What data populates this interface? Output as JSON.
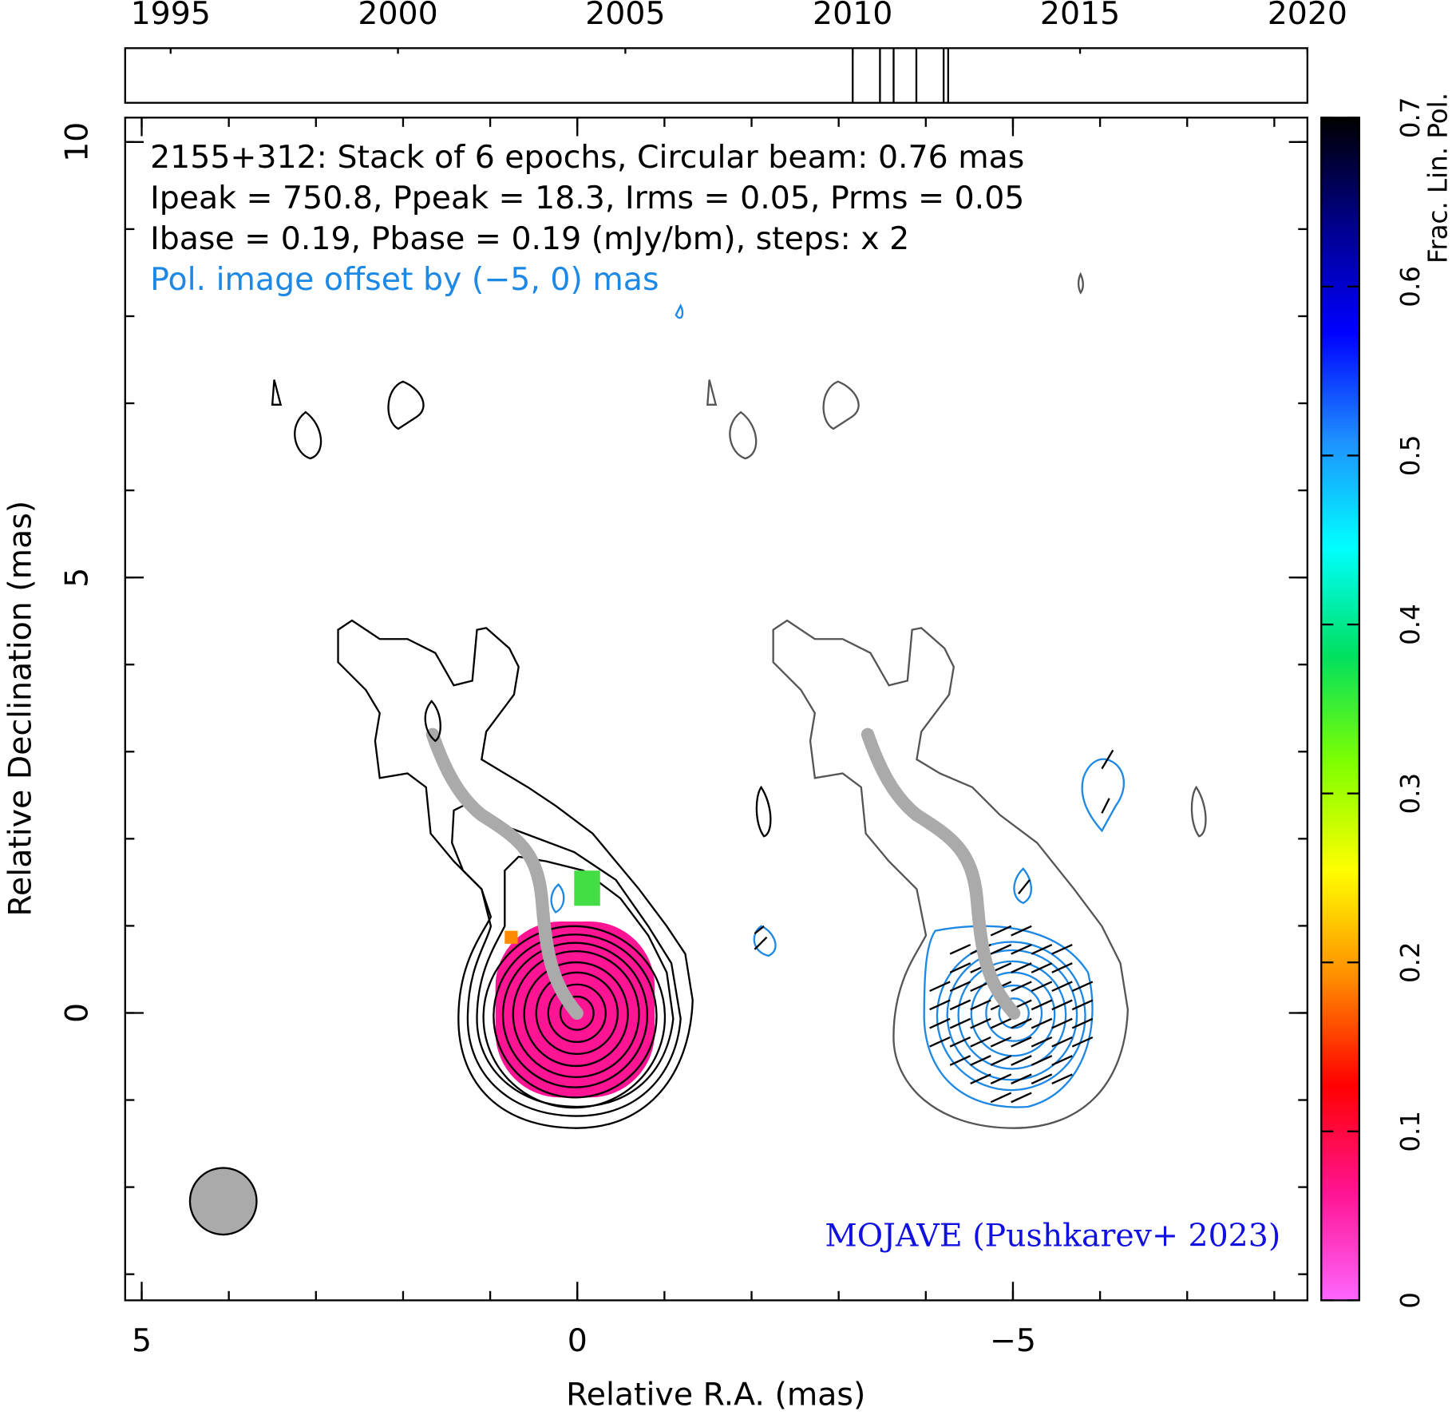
{
  "chart_data": {
    "type": "image",
    "title": "2155+312: Stack of 6 epochs, Circular beam: 0.76 mas",
    "annotations": [
      {
        "text": "Ipeak = 750.8, Ppeak = 18.3, Irms = 0.05, Prms = 0.05",
        "color": "#000000"
      },
      {
        "text": "Ibase = 0.19, Pbase = 0.19 (mJy/bm), steps: x 2",
        "color": "#000000"
      },
      {
        "text": "Pol. image offset by (−5, 0) mas",
        "color": "#1e88e5"
      }
    ],
    "credit": {
      "text": "MOJAVE (Pushkarev+ 2023)",
      "color": "#1010e0"
    },
    "x_label": "Relative R.A. (mas)",
    "y_label": "Relative Declination (mas)",
    "xlim": [
      5.19,
      -8.38
    ],
    "ylim": [
      -3.3,
      10.28
    ],
    "xticks": [
      5,
      0,
      {
        "value": -5,
        "label": "−5"
      }
    ],
    "yticks": [
      0,
      5,
      10
    ],
    "xminorticks": [
      5,
      4,
      3,
      2,
      1,
      0,
      -1,
      -2,
      -3,
      -4,
      -5,
      -6,
      -7,
      -8
    ],
    "yminorticks": [
      -3,
      -2,
      -1,
      0,
      1,
      2,
      3,
      4,
      5,
      6,
      7,
      8,
      9,
      10
    ],
    "timeline": {
      "xlim": [
        1994,
        2020
      ],
      "xticks": [
        1995,
        2000,
        2005,
        2010,
        2015,
        2020
      ],
      "epochs": [
        2010.0,
        2010.6,
        2010.9,
        2011.4,
        2012.0,
        2012.1
      ]
    },
    "colorbar": {
      "label": "Frac. Lin. Pol.",
      "lim": [
        0,
        0.7
      ],
      "ticks": [
        0,
        0.1,
        0.2,
        0.3,
        0.4,
        0.5,
        0.6,
        0.7
      ],
      "colormap": [
        "#ff66ff",
        "#ff1493",
        "#ff0000",
        "#ff8c00",
        "#ffff00",
        "#7fff00",
        "#00e060",
        "#00ffff",
        "#1e90ff",
        "#0000ff",
        "#00008b",
        "#000000"
      ]
    }
  }
}
